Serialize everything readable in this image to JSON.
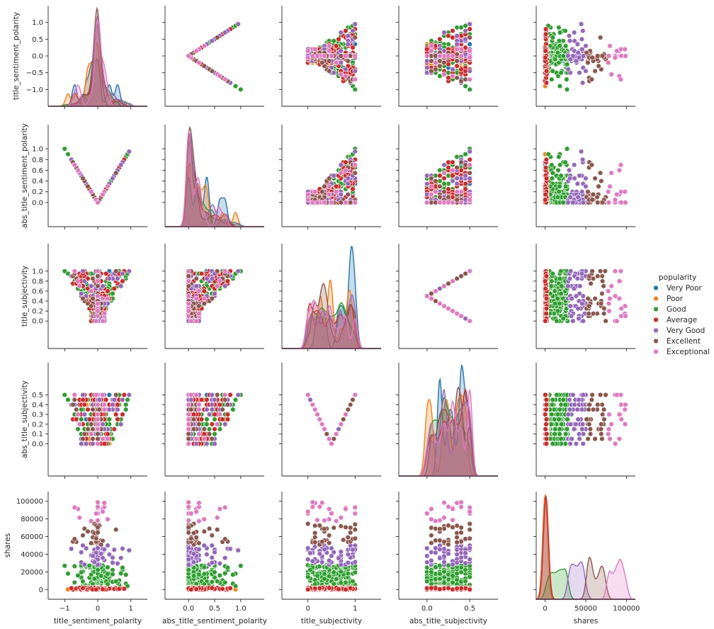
{
  "chart_data": {
    "type": "scatter",
    "kind": "pairplot",
    "diagonal": "kde",
    "variables": [
      {
        "name": "title_sentiment_polarity",
        "range": [
          -1.5,
          1.5
        ],
        "ticks": [
          -1.0,
          -0.5,
          0.0,
          0.5,
          1.0
        ],
        "tick_labels_y": [
          "−1.0",
          "−0.5",
          "0.0",
          "0.5",
          "1.0"
        ],
        "tick_labels_x": [
          "−1",
          "0",
          "1"
        ],
        "tick_values_x": [
          -1,
          0,
          1
        ]
      },
      {
        "name": "abs_title_sentiment_polarity",
        "range": [
          -0.45,
          1.45
        ],
        "ticks": [
          0.0,
          0.2,
          0.4,
          0.6,
          0.8,
          1.0
        ],
        "tick_labels_y": [
          "0.0",
          "0.2",
          "0.4",
          "0.6",
          "0.8",
          "1.0"
        ],
        "tick_labels_x": [
          "0.0",
          "0.5",
          "1.0"
        ],
        "tick_values_x": [
          0,
          0.5,
          1
        ]
      },
      {
        "name": "title_subjectivity",
        "range": [
          -0.55,
          1.55
        ],
        "ticks": [
          0.0,
          0.2,
          0.4,
          0.6,
          0.8,
          1.0
        ],
        "tick_labels_y": [
          "0.0",
          "0.2",
          "0.4",
          "0.6",
          "0.8",
          "1.0"
        ],
        "tick_labels_x": [
          "0",
          "1"
        ],
        "tick_values_x": [
          0,
          1
        ]
      },
      {
        "name": "abs_title_subjectivity",
        "range": [
          -0.33,
          0.83
        ],
        "ticks": [
          0.0,
          0.1,
          0.2,
          0.3,
          0.4,
          0.5
        ],
        "tick_labels_y": [
          "0.0",
          "0.1",
          "0.2",
          "0.3",
          "0.4",
          "0.5"
        ],
        "tick_labels_x": [
          "0.0",
          "0.5"
        ],
        "tick_values_x": [
          0,
          0.5
        ]
      },
      {
        "name": "shares",
        "range": [
          -11000,
          111000
        ],
        "ticks": [
          0,
          20000,
          40000,
          60000,
          80000,
          100000
        ],
        "tick_labels_y": [
          "0",
          "20000",
          "40000",
          "60000",
          "80000",
          "100000"
        ],
        "tick_labels_x": [
          "0",
          "50000",
          "100000"
        ],
        "tick_values_x": [
          0,
          50000,
          100000
        ]
      }
    ],
    "legend": {
      "title": "popularity",
      "placement": "right",
      "entries": [
        {
          "label": "Very Poor",
          "color": "#1f77b4"
        },
        {
          "label": "Poor",
          "color": "#ff7f0e"
        },
        {
          "label": "Good",
          "color": "#2ca02c"
        },
        {
          "label": "Average",
          "color": "#d62728"
        },
        {
          "label": "Very Good",
          "color": "#9467bd"
        },
        {
          "label": "Excellent",
          "color": "#8c564b"
        },
        {
          "label": "Exceptional",
          "color": "#e377c2"
        }
      ]
    },
    "series": [
      {
        "name": "Very Poor",
        "color": "#1f77b4",
        "shares_range": [
          0,
          0
        ],
        "points": 8
      },
      {
        "name": "Poor",
        "color": "#ff7f0e",
        "shares_range": [
          0,
          500
        ],
        "points": 14
      },
      {
        "name": "Good",
        "color": "#2ca02c",
        "shares_range": [
          500,
          28000
        ],
        "points": 160
      },
      {
        "name": "Average",
        "color": "#d62728",
        "shares_range": [
          0,
          2000
        ],
        "points": 160
      },
      {
        "name": "Very Good",
        "color": "#9467bd",
        "shares_range": [
          28000,
          50000
        ],
        "points": 60
      },
      {
        "name": "Excellent",
        "color": "#8c564b",
        "shares_range": [
          50000,
          75000
        ],
        "points": 34
      },
      {
        "name": "Exceptional",
        "color": "#e377c2",
        "shares_range": [
          75000,
          100000
        ],
        "points": 18
      }
    ]
  }
}
